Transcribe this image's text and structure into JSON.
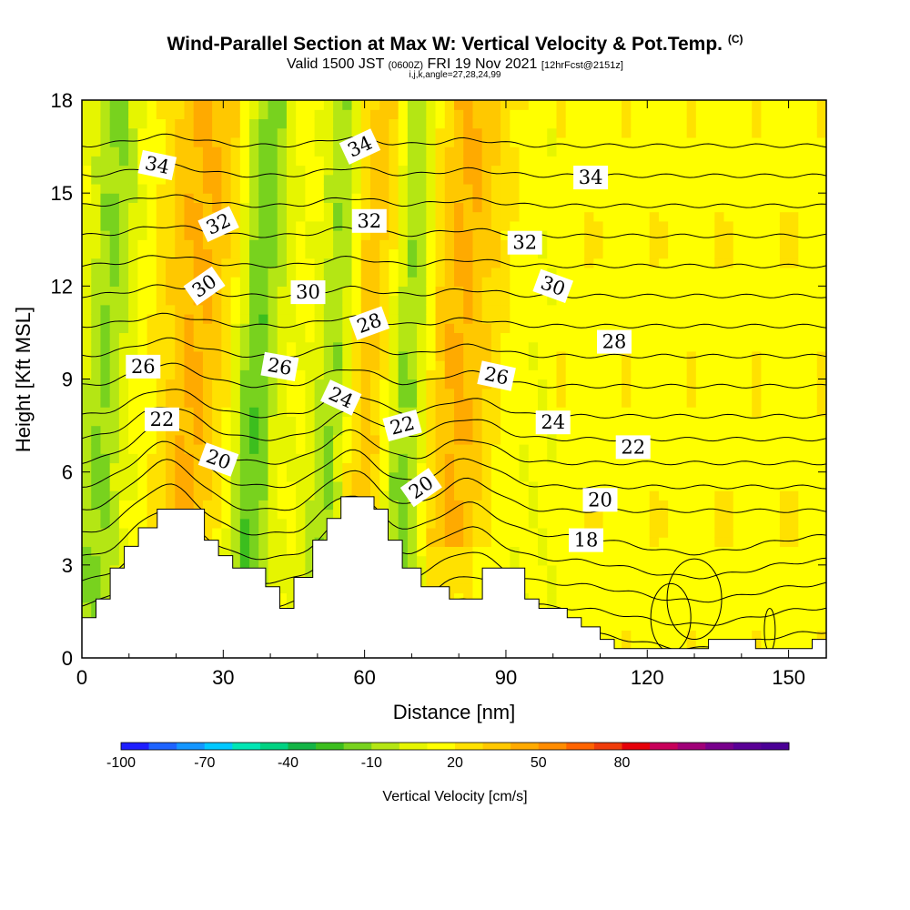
{
  "title": "Wind-Parallel Section at Max W: Vertical Velocity & Pot.Temp.",
  "copyright": "(C)",
  "subtitle_main": "Valid 1500 JST",
  "subtitle_utc": "(0600Z)",
  "subtitle_date": "FRI 19 Nov 2021",
  "subtitle_fcst": "[12hrFcst@2151z]",
  "subtitle_ijk": "i,j,k,angle=27,28,24,99",
  "chart_data": {
    "type": "heatmap",
    "xlabel": "Distance [nm]",
    "ylabel": "Height [Kft MSL]",
    "xlim": [
      0,
      158
    ],
    "ylim": [
      0,
      18
    ],
    "x_ticks": [
      0,
      30,
      60,
      90,
      120,
      150
    ],
    "y_ticks": [
      0,
      3,
      6,
      9,
      12,
      15,
      18
    ],
    "fill_variable": "Vertical Velocity [cm/s]",
    "contour_variable": "Potential Temperature",
    "updraft_cores": [
      {
        "x": 27,
        "peak_cm_s": 30
      },
      {
        "x": 62,
        "peak_cm_s": 30
      },
      {
        "x": 83,
        "peak_cm_s": 30
      }
    ],
    "downdraft_cores": [
      {
        "x": 8,
        "peak_cm_s": -30
      },
      {
        "x": 40,
        "peak_cm_s": -40
      },
      {
        "x": 57,
        "peak_cm_s": -50
      },
      {
        "x": 72,
        "peak_cm_s": -40
      }
    ],
    "contour_labels": [
      {
        "text": "34",
        "x": 16,
        "y": 15.9,
        "angle": 12
      },
      {
        "text": "34",
        "x": 59,
        "y": 16.5,
        "angle": -25
      },
      {
        "text": "34",
        "x": 108,
        "y": 15.5,
        "angle": 0
      },
      {
        "text": "32",
        "x": 29,
        "y": 14.0,
        "angle": -25
      },
      {
        "text": "32",
        "x": 61,
        "y": 14.1,
        "angle": 0
      },
      {
        "text": "32",
        "x": 94,
        "y": 13.4,
        "angle": 0
      },
      {
        "text": "30",
        "x": 26,
        "y": 12.0,
        "angle": -35
      },
      {
        "text": "30",
        "x": 48,
        "y": 11.8,
        "angle": 0
      },
      {
        "text": "30",
        "x": 100,
        "y": 12.0,
        "angle": 20
      },
      {
        "text": "28",
        "x": 61,
        "y": 10.8,
        "angle": -20
      },
      {
        "text": "28",
        "x": 113,
        "y": 10.2,
        "angle": 0
      },
      {
        "text": "26",
        "x": 13,
        "y": 9.4,
        "angle": 0
      },
      {
        "text": "26",
        "x": 42,
        "y": 9.4,
        "angle": 10
      },
      {
        "text": "26",
        "x": 88,
        "y": 9.1,
        "angle": 12
      },
      {
        "text": "24",
        "x": 55,
        "y": 8.4,
        "angle": 25
      },
      {
        "text": "24",
        "x": 100,
        "y": 7.6,
        "angle": 0
      },
      {
        "text": "22",
        "x": 17,
        "y": 7.7,
        "angle": 0
      },
      {
        "text": "22",
        "x": 68,
        "y": 7.5,
        "angle": -15
      },
      {
        "text": "22",
        "x": 117,
        "y": 6.8,
        "angle": 0
      },
      {
        "text": "20",
        "x": 29,
        "y": 6.4,
        "angle": 20
      },
      {
        "text": "20",
        "x": 72,
        "y": 5.5,
        "angle": -35
      },
      {
        "text": "20",
        "x": 110,
        "y": 5.1,
        "angle": 0
      },
      {
        "text": "18",
        "x": 107,
        "y": 3.8,
        "angle": 0
      }
    ],
    "terrain": [
      [
        0,
        1.3
      ],
      [
        3,
        1.3
      ],
      [
        3,
        1.9
      ],
      [
        6,
        1.9
      ],
      [
        6,
        2.9
      ],
      [
        9,
        2.9
      ],
      [
        9,
        3.6
      ],
      [
        12,
        3.6
      ],
      [
        12,
        4.2
      ],
      [
        16,
        4.2
      ],
      [
        16,
        4.8
      ],
      [
        26,
        4.8
      ],
      [
        26,
        3.8
      ],
      [
        29,
        3.8
      ],
      [
        29,
        3.3
      ],
      [
        32,
        3.3
      ],
      [
        32,
        2.9
      ],
      [
        39,
        2.9
      ],
      [
        39,
        2.3
      ],
      [
        42,
        2.3
      ],
      [
        42,
        1.6
      ],
      [
        45,
        1.6
      ],
      [
        45,
        2.6
      ],
      [
        49,
        2.6
      ],
      [
        49,
        3.8
      ],
      [
        52,
        3.8
      ],
      [
        52,
        4.5
      ],
      [
        55,
        4.5
      ],
      [
        55,
        5.2
      ],
      [
        62,
        5.2
      ],
      [
        62,
        4.8
      ],
      [
        65,
        4.8
      ],
      [
        65,
        3.8
      ],
      [
        68,
        3.8
      ],
      [
        68,
        2.9
      ],
      [
        72,
        2.9
      ],
      [
        72,
        2.3
      ],
      [
        78,
        2.3
      ],
      [
        78,
        1.9
      ],
      [
        85,
        1.9
      ],
      [
        85,
        2.9
      ],
      [
        94,
        2.9
      ],
      [
        94,
        1.9
      ],
      [
        97,
        1.9
      ],
      [
        97,
        1.6
      ],
      [
        103,
        1.6
      ],
      [
        103,
        1.3
      ],
      [
        106,
        1.3
      ],
      [
        106,
        1.0
      ],
      [
        110,
        1.0
      ],
      [
        110,
        0.6
      ],
      [
        113,
        0.6
      ],
      [
        113,
        0.3
      ],
      [
        133,
        0.3
      ],
      [
        133,
        0.6
      ],
      [
        143,
        0.6
      ],
      [
        143,
        0.3
      ],
      [
        155,
        0.3
      ],
      [
        155,
        0.6
      ],
      [
        158,
        0.6
      ]
    ]
  },
  "colorbar": {
    "title": "Vertical Velocity [cm/s]",
    "tick_labels": [
      "-100",
      "-70",
      "-40",
      "-10",
      "20",
      "50",
      "80"
    ],
    "tick_values": [
      -100,
      -70,
      -40,
      -10,
      20,
      50,
      80
    ],
    "colors": [
      "#1e1eff",
      "#1e64ff",
      "#1496ff",
      "#00c8ff",
      "#00e6b4",
      "#00d282",
      "#14b446",
      "#3cbe1e",
      "#78d21e",
      "#b4e614",
      "#e6f500",
      "#ffff00",
      "#ffe100",
      "#ffc800",
      "#ffaa00",
      "#ff8c00",
      "#ff6400",
      "#f03c0a",
      "#e6000a",
      "#c8005a",
      "#a00078",
      "#78008c",
      "#5a0096",
      "#4b0096"
    ]
  }
}
